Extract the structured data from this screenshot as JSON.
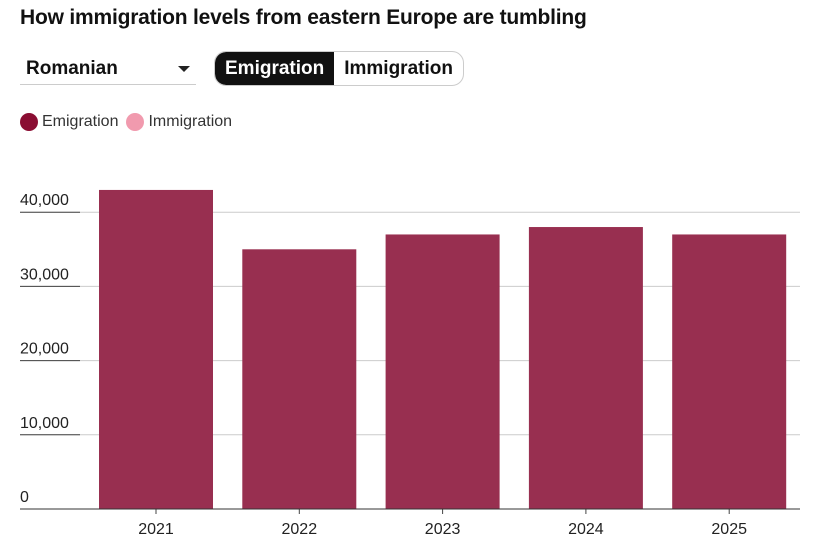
{
  "title": "How immigration levels from eastern Europe are tumbling",
  "controls": {
    "nationality": "Romanian",
    "toggle": [
      "Emigration",
      "Immigration"
    ],
    "active": "Emigration"
  },
  "legend": [
    {
      "label": "Emigration",
      "color": "#8a0d32"
    },
    {
      "label": "Immigration",
      "color": "#f19aae"
    }
  ],
  "chart_data": {
    "type": "bar",
    "title": "How immigration levels from eastern Europe are tumbling",
    "categories": [
      "2021",
      "2022",
      "2023",
      "2024",
      "2025"
    ],
    "series": [
      {
        "name": "Emigration",
        "values": [
          43000,
          35000,
          37000,
          38000,
          37000
        ],
        "color": "#982f50"
      }
    ],
    "yticks": [
      0,
      10000,
      20000,
      30000,
      40000
    ],
    "ytick_labels": [
      "0",
      "10,000",
      "20,000",
      "30,000",
      "40,000"
    ],
    "ylim": [
      0,
      43000
    ],
    "xlabel": "",
    "ylabel": "",
    "grid": true,
    "legend_position": "top-left"
  }
}
